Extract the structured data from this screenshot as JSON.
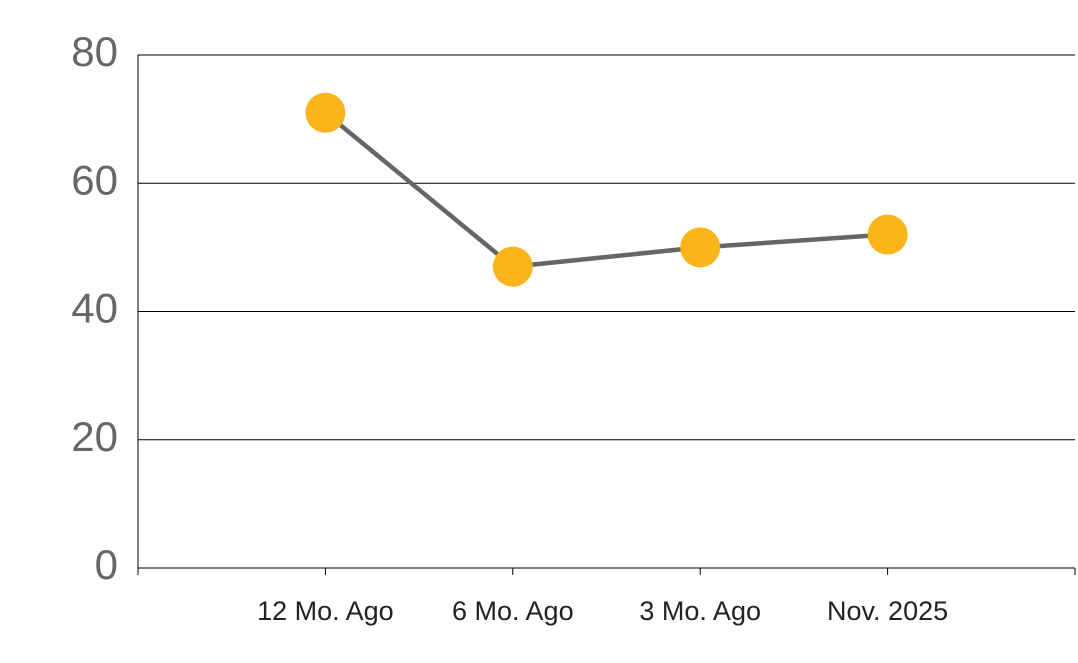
{
  "chart_data": {
    "type": "line",
    "categories": [
      "12 Mo. Ago",
      "6 Mo. Ago",
      "3 Mo. Ago",
      "Nov. 2025"
    ],
    "values": [
      71,
      47,
      50,
      52
    ],
    "color": "#666666",
    "marker_color": "#fbb41a",
    "ylim": [
      0,
      80
    ],
    "yticks": [
      0,
      20,
      40,
      60,
      80
    ],
    "grid": true
  }
}
